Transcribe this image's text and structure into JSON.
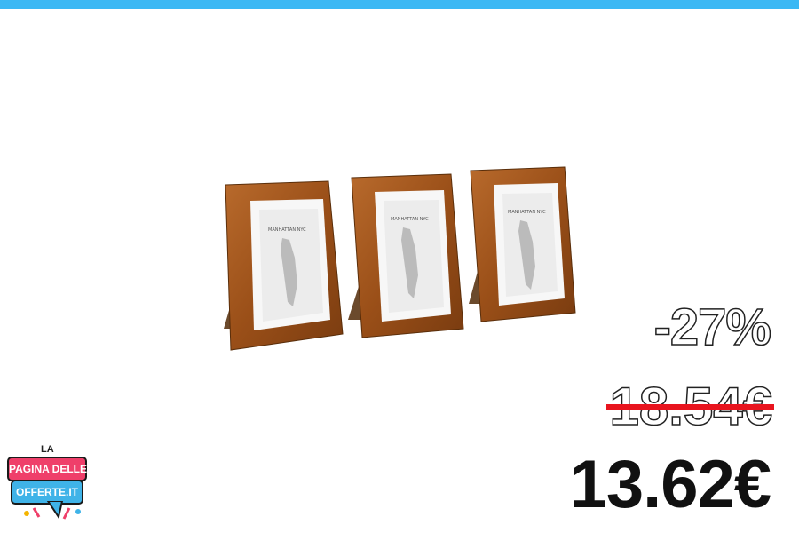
{
  "promo": {
    "discount": "-27%",
    "old_price": "18.54€",
    "new_price": "13.62€"
  },
  "product": {
    "frame_text": "MANHATTAN NYC",
    "frame_count": 3
  },
  "logo": {
    "small": "LA",
    "line1": "PAGINA DELLE",
    "line2": "OFFERTE.IT"
  },
  "colors": {
    "top_bar": "#3bb8f4",
    "strike": "#e8141e",
    "frame_wood": "#a0561e",
    "logo_pink": "#ef3f6a",
    "logo_blue": "#3fb3e8"
  }
}
